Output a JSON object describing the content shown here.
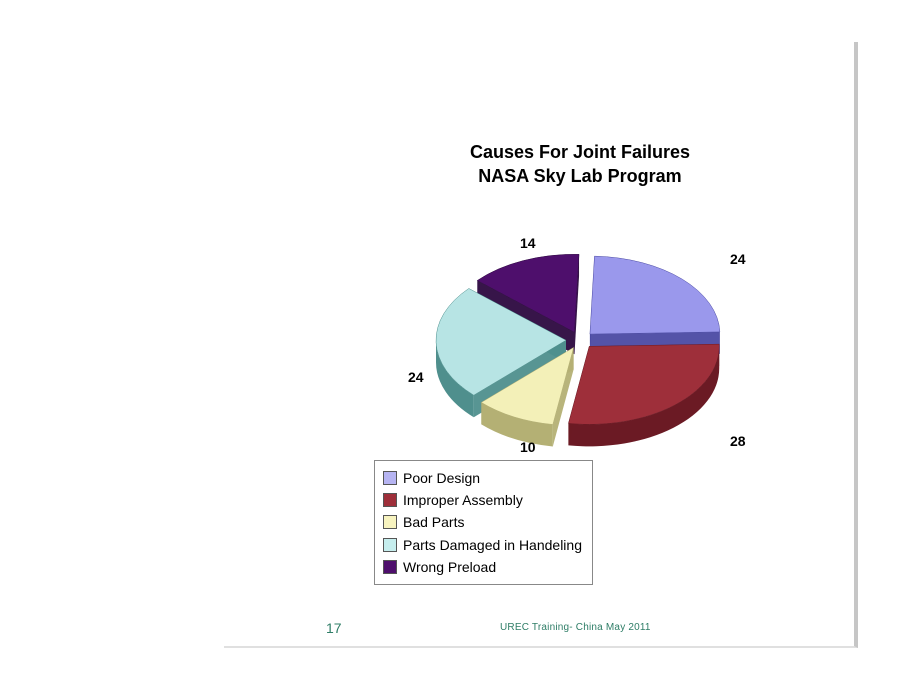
{
  "slide": {
    "title_line1": "Causes For Joint Failures",
    "title_line2": "NASA Sky Lab Program",
    "title_fontsize": 18,
    "title_color": "#000000",
    "page_number": "17",
    "footer": "UREC Training- China May 2011",
    "footer_color": "#2e7d66",
    "decor_dots": [
      "#1f6e68",
      "#7fc9c4",
      "#cfcfcf"
    ],
    "vline_color": "#2b2b2b",
    "slide_right_border": "#c6c6c6"
  },
  "chart": {
    "type": "pie-3d-exploded",
    "background_color": "#ffffff",
    "depth": 22,
    "explode_gap": 14,
    "label_fontsize": 14,
    "label_fontweight": "bold",
    "label_color": "#000000",
    "series": [
      {
        "label": "Poor Design",
        "value": 24,
        "top": "#9a98ec",
        "side": "#4b4aa3",
        "swatch": "#b6b4f2"
      },
      {
        "label": "Improper Assembly",
        "value": 28,
        "top": "#9e2f3a",
        "side": "#6b1a24",
        "swatch": "#9e2f3a"
      },
      {
        "label": "Bad Parts",
        "value": 10,
        "top": "#f3f0b8",
        "side": "#b4b074",
        "swatch": "#f7f3bf"
      },
      {
        "label": "Parts Damaged in Handeling",
        "value": 24,
        "top": "#b7e4e4",
        "side": "#4f8f8d",
        "swatch": "#c6eeee"
      },
      {
        "label": "Wrong Preload",
        "value": 14,
        "top": "#4e0f6c",
        "side": "#2c083f",
        "swatch": "#4e0f6c"
      }
    ],
    "legend": {
      "border_color": "#888888",
      "swatch_border": "#555555",
      "font_size": 14
    },
    "data_labels": {
      "0": "24",
      "1": "28",
      "2": "10",
      "3": "24",
      "4": "14"
    }
  }
}
